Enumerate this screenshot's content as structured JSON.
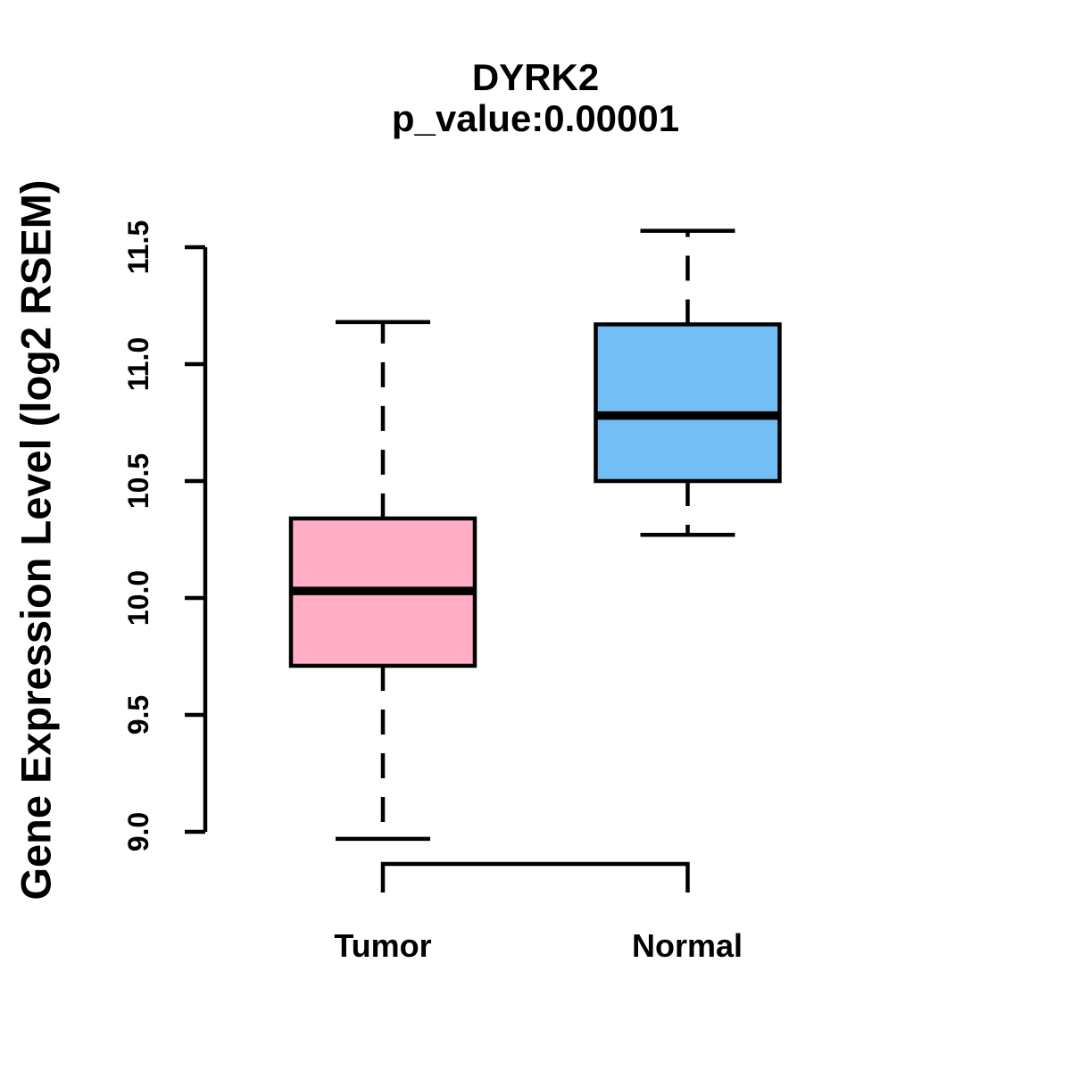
{
  "page": {
    "background": "#ffffff",
    "text_color": "#000000"
  },
  "chart_data": {
    "type": "boxplot",
    "title": "DYRK2",
    "subtitle": "p_value:0.00001",
    "ylabel": "Gene Expression Level (log2 RSEM)",
    "xlabel": "",
    "ylim": [
      9.0,
      11.5
    ],
    "ytick_values": [
      9.0,
      9.5,
      10.0,
      10.5,
      11.0,
      11.5
    ],
    "ytick_labels": [
      "9.0",
      "9.5",
      "10.0",
      "10.5",
      "11.0",
      "11.5"
    ],
    "grid": false,
    "legend": false,
    "categories": [
      "Tumor",
      "Normal"
    ],
    "series": [
      {
        "name": "Tumor",
        "color": "#ffaec6",
        "whisker_low": 8.97,
        "q1": 9.71,
        "median": 10.03,
        "q3": 10.34,
        "whisker_high": 11.18
      },
      {
        "name": "Normal",
        "color": "#73bef5",
        "whisker_low": 10.27,
        "q1": 10.5,
        "median": 10.78,
        "q3": 11.17,
        "whisker_high": 11.57
      }
    ],
    "colors": {
      "tumor_box": "#ffaec6",
      "normal_box": "#73bef5",
      "line": "#000000"
    }
  }
}
